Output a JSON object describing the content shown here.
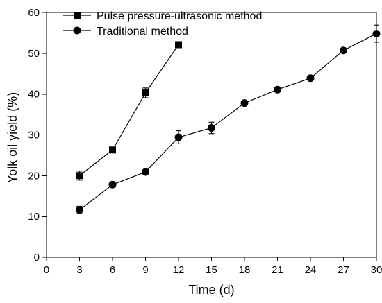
{
  "chart_data": {
    "type": "line",
    "title": "",
    "xlabel": "Time (d)",
    "ylabel": "Yolk oil yield (%)",
    "xlim": [
      0,
      30
    ],
    "ylim": [
      0,
      60
    ],
    "xticks": [
      0,
      3,
      6,
      9,
      12,
      15,
      18,
      21,
      24,
      27,
      30
    ],
    "yticks": [
      0,
      10,
      20,
      30,
      40,
      50,
      60
    ],
    "grid": false,
    "legend_position": "top-left",
    "series": [
      {
        "name": "Pulse pressure-ultrasonic method",
        "marker": "square",
        "color": "#000000",
        "x": [
          3,
          6,
          9,
          12
        ],
        "y": [
          20.0,
          26.3,
          40.3,
          52.1
        ],
        "error": [
          1.1,
          0.4,
          1.2,
          0.4
        ]
      },
      {
        "name": "Traditional method",
        "marker": "circle",
        "color": "#000000",
        "x": [
          3,
          6,
          9,
          12,
          15,
          18,
          21,
          24,
          27,
          30
        ],
        "y": [
          11.6,
          17.8,
          20.9,
          29.4,
          31.7,
          37.8,
          41.1,
          43.9,
          50.7,
          54.8
        ],
        "error": [
          0.9,
          0.3,
          0.3,
          1.6,
          1.4,
          0.3,
          0.3,
          0.3,
          0.3,
          2.1
        ]
      }
    ]
  }
}
